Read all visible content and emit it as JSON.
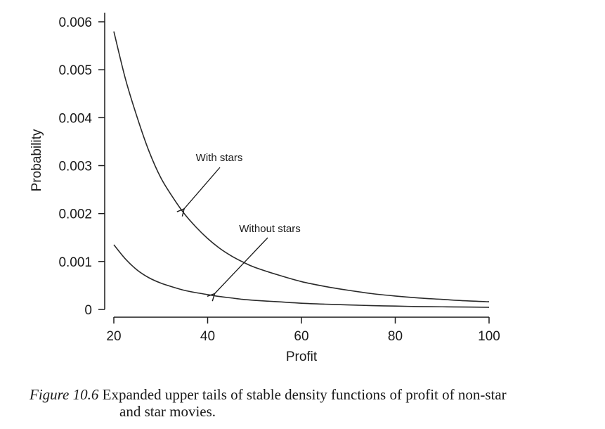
{
  "chart_data": {
    "type": "line",
    "xlabel": "Profit",
    "ylabel": "Probability",
    "xlim": [
      20,
      100
    ],
    "ylim": [
      0,
      0.006
    ],
    "xticks": [
      20,
      40,
      60,
      80,
      100
    ],
    "xtick_labels": [
      "20",
      "40",
      "60",
      "80",
      "100"
    ],
    "yticks": [
      0,
      0.001,
      0.002,
      0.003,
      0.004,
      0.005,
      0.006
    ],
    "ytick_labels": [
      "0",
      "0.001",
      "0.002",
      "0.003",
      "0.004",
      "0.005",
      "0.006"
    ],
    "grid": false,
    "series": [
      {
        "name": "With stars",
        "x": [
          20,
          22.5,
          25,
          27.5,
          30,
          32.5,
          35,
          37.5,
          40,
          42.5,
          45,
          47.5,
          50,
          55,
          60,
          65,
          70,
          75,
          80,
          85,
          90,
          95,
          100
        ],
        "values": [
          0.0058,
          0.0048,
          0.004,
          0.0033,
          0.00275,
          0.00235,
          0.002,
          0.00172,
          0.00148,
          0.00128,
          0.00112,
          0.00099,
          0.00088,
          0.00072,
          0.00058,
          0.00048,
          0.0004,
          0.00033,
          0.00028,
          0.00024,
          0.00021,
          0.00018,
          0.00016
        ]
      },
      {
        "name": "Without stars",
        "x": [
          20,
          22.5,
          25,
          27.5,
          30,
          32.5,
          35,
          37.5,
          40,
          42.5,
          45,
          47.5,
          50,
          55,
          60,
          65,
          70,
          75,
          80,
          85,
          90,
          95,
          100
        ],
        "values": [
          0.00135,
          0.00105,
          0.00082,
          0.00066,
          0.00055,
          0.00047,
          0.0004,
          0.00035,
          0.00031,
          0.00027,
          0.00024,
          0.00021,
          0.00019,
          0.00016,
          0.00013,
          0.00011,
          9.5e-05,
          8e-05,
          7e-05,
          6e-05,
          5.5e-05,
          5e-05,
          4.5e-05
        ]
      }
    ],
    "annotations": [
      {
        "text": "With stars",
        "target_x": 35,
        "target_y": 0.0021
      },
      {
        "text": "Without stars",
        "target_x": 41.5,
        "target_y": 0.00033
      }
    ]
  },
  "caption": {
    "label": "Figure 10.6",
    "text_line1": "Expanded upper tails of stable density functions of profit of non-star",
    "text_line2": "and star movies."
  }
}
